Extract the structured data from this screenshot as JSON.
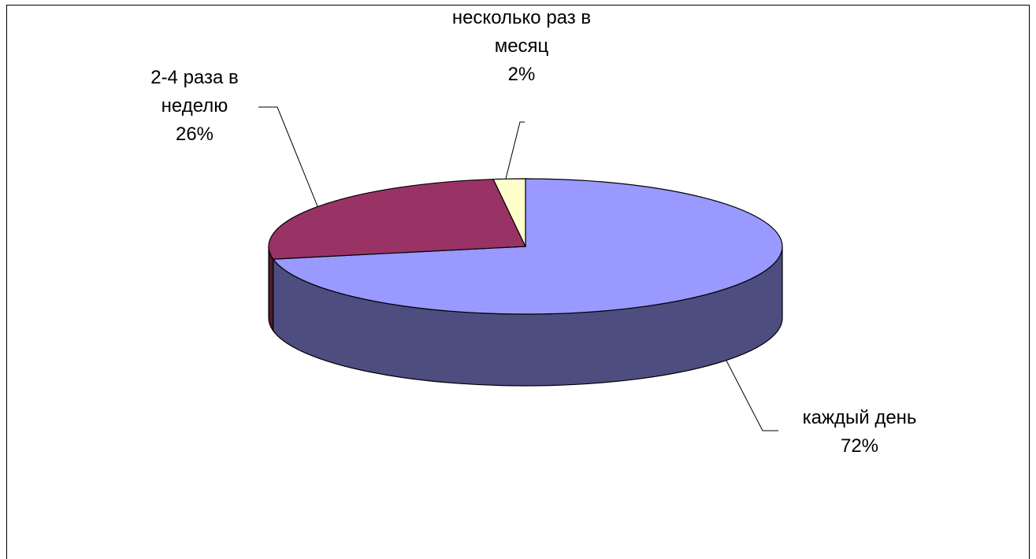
{
  "chart_data": {
    "type": "pie",
    "style": "3d",
    "title": "",
    "legend": "none",
    "slices": [
      {
        "label_lines": [
          "каждый день"
        ],
        "percent_text": "72%",
        "value": 72,
        "color": "#9999ff",
        "side_color": "#4d4d80"
      },
      {
        "label_lines": [
          "2-4 раза в",
          "неделю"
        ],
        "percent_text": "26%",
        "value": 26,
        "color": "#993366",
        "side_color": "#4d1a33"
      },
      {
        "label_lines": [
          "несколько раз в",
          "месяц"
        ],
        "percent_text": "2%",
        "value": 2,
        "color": "#ffffcc",
        "side_color": "#808066"
      }
    ]
  }
}
